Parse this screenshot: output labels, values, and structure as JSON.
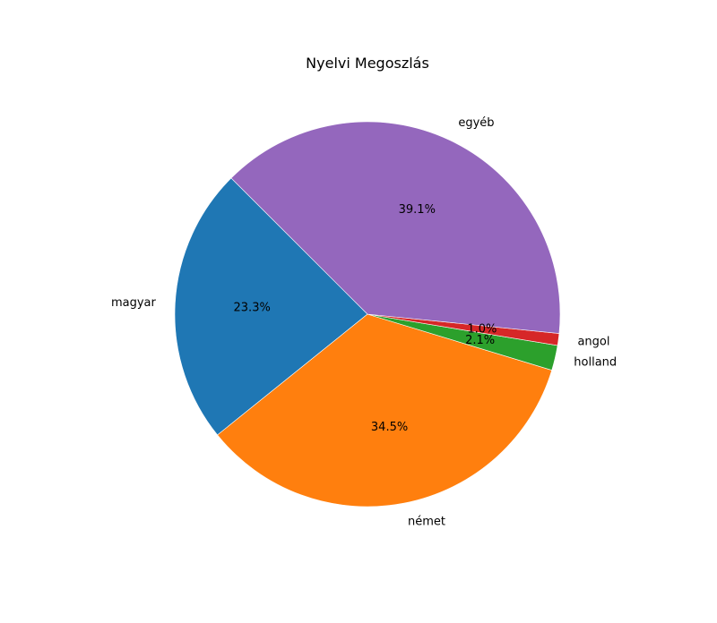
{
  "chart_data": {
    "type": "pie",
    "title": "Nyelvi Megoszlás",
    "labels": [
      "magyar",
      "német",
      "holland",
      "angol",
      "egyéb"
    ],
    "values": [
      23.3,
      34.5,
      2.1,
      1.0,
      39.1
    ],
    "percent_labels": [
      "23.3%",
      "34.5%",
      "2.1%",
      "1.0%",
      "39.1%"
    ],
    "colors": [
      "#1f77b4",
      "#ff7f0e",
      "#2ca02c",
      "#d62728",
      "#9467bd"
    ],
    "start_angle_deg": 135,
    "direction": "counterclockwise",
    "legend": "none"
  }
}
